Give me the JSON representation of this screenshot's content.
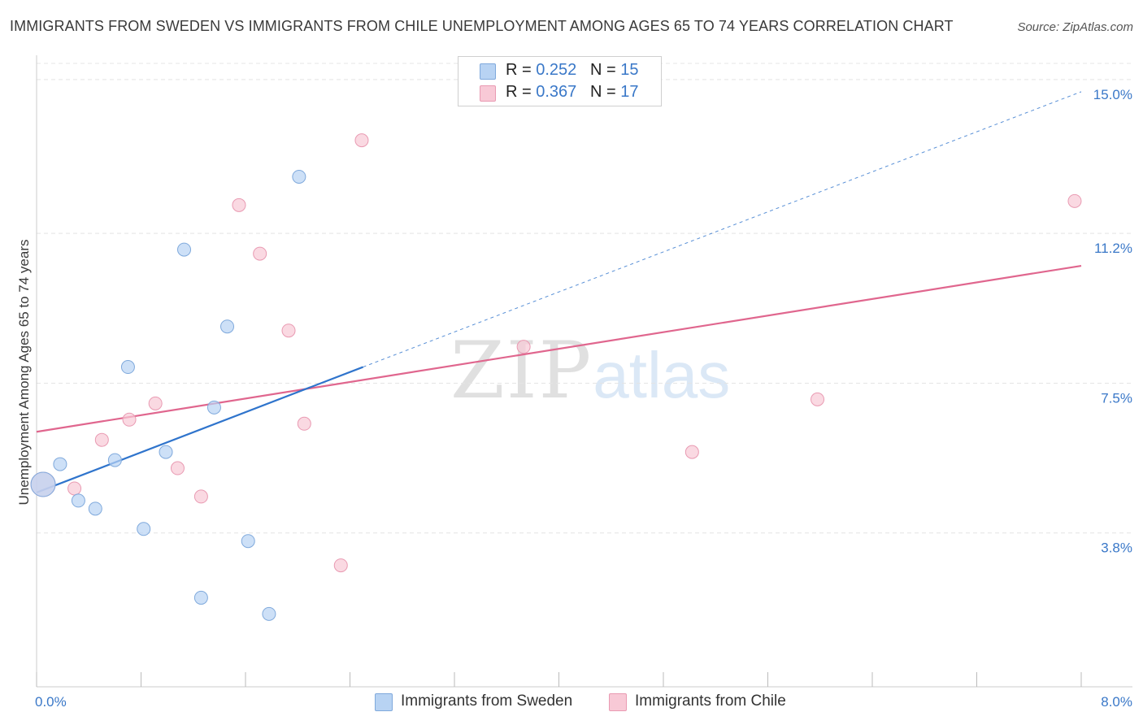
{
  "title": "IMMIGRANTS FROM SWEDEN VS IMMIGRANTS FROM CHILE UNEMPLOYMENT AMONG AGES 65 TO 74 YEARS CORRELATION CHART",
  "source": "Source: ZipAtlas.com",
  "watermark": {
    "zip": "ZIP",
    "atlas": "atlas"
  },
  "colors": {
    "sweden_fill": "#b8d3f3",
    "sweden_stroke": "#7fa9dc",
    "sweden_line": "#2f74cc",
    "chile_fill": "#f8c9d6",
    "chile_stroke": "#e99ab2",
    "chile_line": "#e0668e",
    "tick_label": "#3a78c8",
    "grid": "#e4e4e4"
  },
  "legend": {
    "rows": [
      {
        "r_label": "R = ",
        "r_value": "0.252",
        "n_label": "N = ",
        "n_value": "15"
      },
      {
        "r_label": "R = ",
        "r_value": "0.367",
        "n_label": "N = ",
        "n_value": "17"
      }
    ]
  },
  "chart_data": {
    "type": "scatter",
    "title": "IMMIGRANTS FROM SWEDEN VS IMMIGRANTS FROM CHILE UNEMPLOYMENT AMONG AGES 65 TO 74 YEARS CORRELATION CHART",
    "xlabel": "",
    "ylabel": "Unemployment Among Ages 65 to 74 years",
    "xlim": [
      0,
      8.0
    ],
    "ylim": [
      0,
      15.4
    ],
    "x_tick_labels": [
      "0.0%",
      "8.0%"
    ],
    "y_ticks": [
      3.8,
      7.5,
      11.2,
      15.0
    ],
    "y_tick_labels": [
      "3.8%",
      "7.5%",
      "11.2%",
      "15.0%"
    ],
    "legend_position": "top-center",
    "series": [
      {
        "name": "Immigrants from Sweden",
        "points": [
          {
            "x": 0.05,
            "y": 5.0,
            "big": true
          },
          {
            "x": 0.18,
            "y": 5.5
          },
          {
            "x": 0.32,
            "y": 4.6
          },
          {
            "x": 0.45,
            "y": 4.4
          },
          {
            "x": 0.6,
            "y": 5.6
          },
          {
            "x": 0.7,
            "y": 7.9
          },
          {
            "x": 0.82,
            "y": 3.9
          },
          {
            "x": 0.99,
            "y": 5.8
          },
          {
            "x": 1.13,
            "y": 10.8
          },
          {
            "x": 1.26,
            "y": 2.2
          },
          {
            "x": 1.36,
            "y": 6.9
          },
          {
            "x": 1.46,
            "y": 8.9
          },
          {
            "x": 1.62,
            "y": 3.6
          },
          {
            "x": 1.78,
            "y": 1.8
          },
          {
            "x": 2.01,
            "y": 12.6
          }
        ],
        "trend": {
          "x0": 0.0,
          "y0": 4.8,
          "x1": 2.5,
          "y1": 7.9,
          "dash_x1": 8.0,
          "dash_y1": 14.7
        }
      },
      {
        "name": "Immigrants from Chile",
        "points": [
          {
            "x": 0.05,
            "y": 5.0,
            "big": true
          },
          {
            "x": 0.29,
            "y": 4.9
          },
          {
            "x": 0.5,
            "y": 6.1
          },
          {
            "x": 0.71,
            "y": 6.6
          },
          {
            "x": 0.91,
            "y": 7.0
          },
          {
            "x": 1.08,
            "y": 5.4
          },
          {
            "x": 1.26,
            "y": 4.7
          },
          {
            "x": 1.55,
            "y": 11.9
          },
          {
            "x": 1.71,
            "y": 10.7
          },
          {
            "x": 1.93,
            "y": 8.8
          },
          {
            "x": 2.05,
            "y": 6.5
          },
          {
            "x": 2.33,
            "y": 3.0
          },
          {
            "x": 2.49,
            "y": 13.5
          },
          {
            "x": 3.73,
            "y": 8.4
          },
          {
            "x": 5.02,
            "y": 5.8
          },
          {
            "x": 5.98,
            "y": 7.1
          },
          {
            "x": 7.95,
            "y": 12.0
          }
        ],
        "trend": {
          "x0": 0.0,
          "y0": 6.3,
          "x1": 8.0,
          "y1": 10.4
        }
      }
    ]
  }
}
